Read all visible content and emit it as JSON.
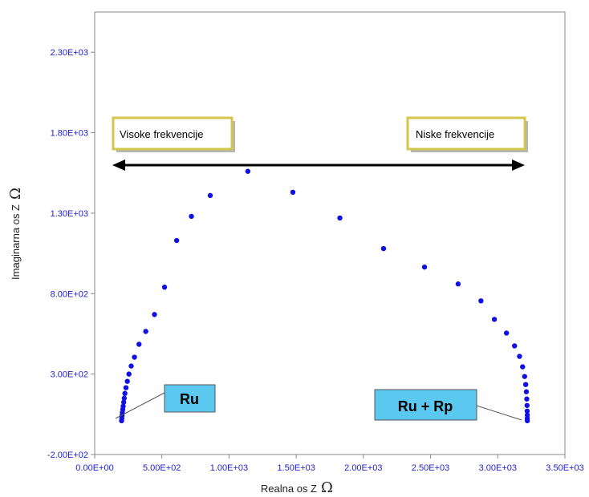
{
  "chart_data": {
    "type": "scatter",
    "xlabel": "Realna os  Z",
    "ylabel": "Imaginarna os  Z",
    "axis_unit_symbol": "Ω",
    "xlim": [
      0,
      3500
    ],
    "ylim": [
      -200,
      2550
    ],
    "x_ticks": [
      0,
      500,
      1000,
      1500,
      2000,
      2500,
      3000,
      3500
    ],
    "x_tick_labels": [
      "0.00E+00",
      "5.00E+02",
      "1.00E+03",
      "1.50E+03",
      "2.00E+03",
      "2.50E+03",
      "3.00E+03",
      "3.50E+03"
    ],
    "y_ticks": [
      -200,
      300,
      800,
      1300,
      1800,
      2300
    ],
    "y_tick_labels": [
      "-2.00E+02",
      "3.00E+02",
      "8.00E+02",
      "1.30E+03",
      "1.80E+03",
      "2.30E+03"
    ],
    "grid": false,
    "point_color": "#1010e0",
    "series": [
      {
        "x": [
          200,
          202,
          204,
          206,
          209,
          212,
          216,
          220,
          225,
          233,
          243,
          255,
          272,
          296,
          330,
          380,
          445,
          520,
          610,
          720,
          860,
          1140,
          1475,
          1825,
          2150,
          2455,
          2705,
          2875,
          2975,
          3065,
          3125,
          3162,
          3185,
          3200,
          3208,
          3213,
          3216,
          3218,
          3219,
          3220,
          3220,
          3220
        ],
        "y": [
          10,
          25,
          42,
          60,
          80,
          100,
          125,
          150,
          180,
          215,
          255,
          300,
          350,
          405,
          485,
          565,
          670,
          840,
          1130,
          1280,
          1410,
          1560,
          1430,
          1270,
          1080,
          965,
          860,
          755,
          640,
          555,
          475,
          410,
          345,
          285,
          235,
          190,
          145,
          105,
          70,
          45,
          25,
          10
        ]
      }
    ],
    "annotations": {
      "arrow_label_left": "Visoke frekvencije",
      "arrow_label_right": "Niske frekvencije",
      "callout_left": "Ru",
      "callout_right": "Ru + Rp"
    },
    "colors": {
      "label_box_border": "#d4c64a",
      "callout_fill": "#5bc8f0",
      "tick_text": "#1f1fd0"
    }
  }
}
